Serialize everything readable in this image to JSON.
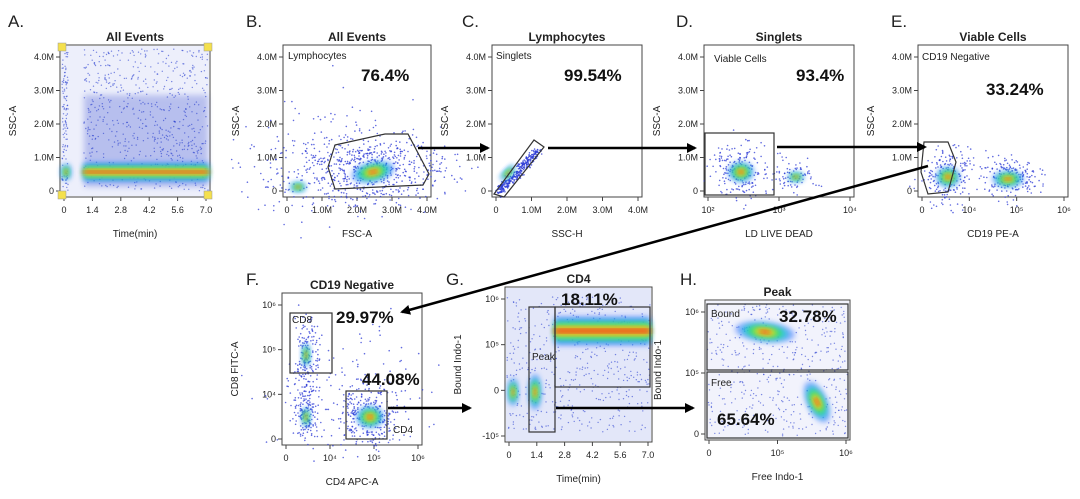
{
  "figure": {
    "panels": [
      {
        "id": "A",
        "letter": "A.",
        "title": "All Events",
        "xlabel": "Time(min)",
        "ylabel": "SSC-A",
        "xticks": [
          "0",
          "1.4",
          "2.8",
          "4.2",
          "5.6",
          "7.0"
        ],
        "yticks": [
          "0",
          "1.0M",
          "2.0M",
          "3.0M",
          "4.0M"
        ],
        "gate_label": "",
        "percent": ""
      },
      {
        "id": "B",
        "letter": "B.",
        "title": "All Events",
        "xlabel": "FSC-A",
        "ylabel": "SSC-A",
        "xticks": [
          "0",
          "1.0M",
          "2.0M",
          "3.0M",
          "4.0M"
        ],
        "yticks": [
          "0",
          "1.0M",
          "2.0M",
          "3.0M",
          "4.0M"
        ],
        "gate_label": "Lymphocytes",
        "percent": "76.4%"
      },
      {
        "id": "C",
        "letter": "C.",
        "title": "Lymphocytes",
        "xlabel": "SSC-H",
        "ylabel": "SSC-A",
        "xticks": [
          "0",
          "1.0M",
          "2.0M",
          "3.0M",
          "4.0M"
        ],
        "yticks": [
          "0",
          "1.0M",
          "2.0M",
          "3.0M",
          "4.0M"
        ],
        "gate_label": "Singlets",
        "percent": "99.54%"
      },
      {
        "id": "D",
        "letter": "D.",
        "title": "Singlets",
        "xlabel": "LD LIVE DEAD",
        "ylabel": "SSC-A",
        "xticks": [
          "10²",
          "10³",
          "10⁴"
        ],
        "yticks": [
          "0",
          "1.0M",
          "2.0M",
          "3.0M",
          "4.0M"
        ],
        "gate_label": "Viable Cells",
        "percent": "93.4%"
      },
      {
        "id": "E",
        "letter": "E.",
        "title": "Viable Cells",
        "xlabel": "CD19 PE-A",
        "ylabel": "SSC-A",
        "xticks": [
          "0",
          "10⁴",
          "10⁵",
          "10⁶"
        ],
        "yticks": [
          "0",
          "1.0M",
          "2.0M",
          "3.0M",
          "4.0M"
        ],
        "gate_label": "CD19 Negative",
        "percent": "33.24%"
      },
      {
        "id": "F",
        "letter": "F.",
        "title": "CD19 Negative",
        "xlabel": "CD4 APC-A",
        "ylabel": "CD8 FITC-A",
        "xticks": [
          "0",
          "10⁴",
          "10⁵",
          "10⁶"
        ],
        "yticks": [
          "0",
          "10⁴",
          "10⁵",
          "10⁶"
        ],
        "gate_label": "CD8",
        "gate_label_2": "CD4",
        "percent": "29.97%",
        "percent_2": "44.08%"
      },
      {
        "id": "G",
        "letter": "G.",
        "title": "CD4",
        "xlabel": "Time(min)",
        "ylabel": "Bound Indo-1",
        "xticks": [
          "0",
          "1.4",
          "2.8",
          "4.2",
          "5.6",
          "7.0"
        ],
        "yticks": [
          "-10⁵",
          "0",
          "10⁵",
          "10⁶"
        ],
        "gate_label": "Peak",
        "percent": "18.11%"
      },
      {
        "id": "H",
        "letter": "H.",
        "title": "Peak",
        "xlabel": "Free Indo-1",
        "ylabel": "Bound Indo-1",
        "xticks": [
          "0",
          "10⁵",
          "10⁶"
        ],
        "yticks": [
          "0",
          "10⁵",
          "10⁶"
        ],
        "gate_label": "Bound",
        "gate_label_2": "Free",
        "percent": "32.78%",
        "percent_2": "65.64%"
      }
    ]
  }
}
